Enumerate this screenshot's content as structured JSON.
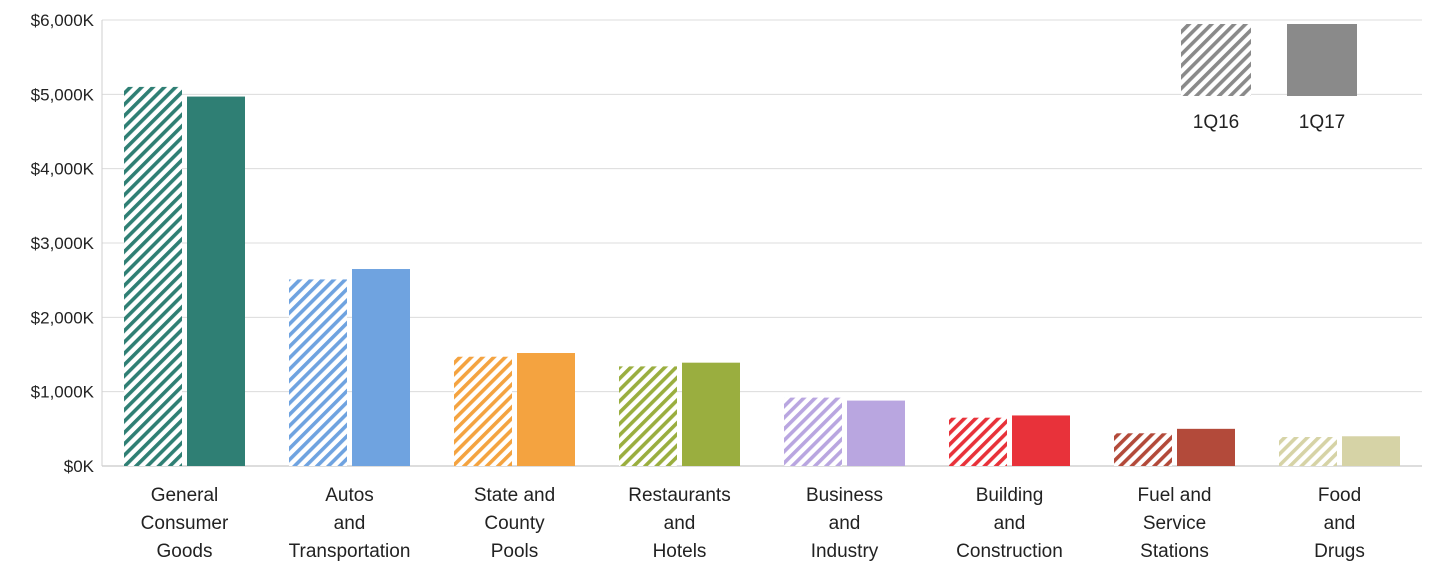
{
  "chart_data": {
    "type": "bar",
    "y_tick_labels": [
      "$0K",
      "$1,000K",
      "$2,000K",
      "$3,000K",
      "$4,000K",
      "$5,000K",
      "$6,000K"
    ],
    "ylim": [
      0,
      6000
    ],
    "grid": true,
    "legend_position": "top-right",
    "categories": [
      {
        "lines": [
          "General",
          "Consumer",
          "Goods"
        ],
        "color": "#2f7f74"
      },
      {
        "lines": [
          "Autos",
          "and",
          "Transportation"
        ],
        "color": "#6fa3e0"
      },
      {
        "lines": [
          "State and",
          "County",
          "Pools"
        ],
        "color": "#f4a340"
      },
      {
        "lines": [
          "Restaurants",
          "and",
          "Hotels"
        ],
        "color": "#9aae3f"
      },
      {
        "lines": [
          "Business",
          "and",
          "Industry"
        ],
        "color": "#b9a6e0"
      },
      {
        "lines": [
          "Building",
          "and",
          "Construction"
        ],
        "color": "#e8323a"
      },
      {
        "lines": [
          "Fuel and",
          "Service",
          "Stations"
        ],
        "color": "#b34a3a"
      },
      {
        "lines": [
          "Food",
          "and",
          "Drugs"
        ],
        "color": "#d6d3a6"
      }
    ],
    "series": [
      {
        "name": "1Q16",
        "pattern": "hatched",
        "values": [
          5100,
          2510,
          1470,
          1340,
          920,
          650,
          440,
          390
        ]
      },
      {
        "name": "1Q17",
        "pattern": "solid",
        "values": [
          4970,
          2650,
          1520,
          1390,
          880,
          680,
          500,
          400
        ]
      }
    ],
    "legend": {
      "swatch_color": "#8a8a8a"
    }
  }
}
